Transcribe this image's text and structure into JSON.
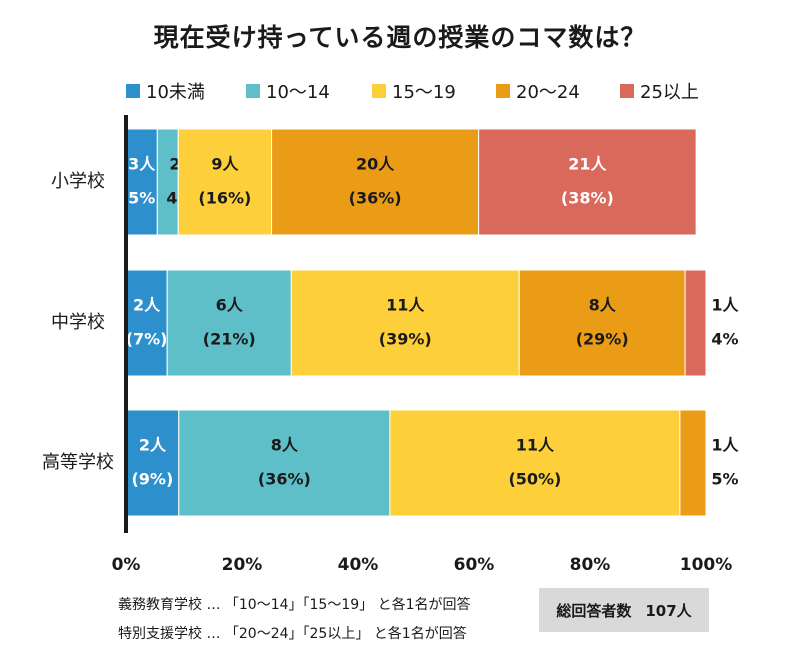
{
  "chart_data": {
    "type": "bar",
    "orientation": "horizontal",
    "stacked": true,
    "title": "現在受け持っている週の授業のコマ数は？",
    "categories": [
      "小学校",
      "中学校",
      "高等学校"
    ],
    "series": [
      {
        "name": "10未満",
        "color": "#2e8fcd",
        "values_pct": [
          5.4,
          7.1,
          9.1
        ],
        "labels_count": [
          "3人",
          "2人",
          "2人"
        ],
        "labels_pct": [
          "5%",
          "(7%)",
          "(9%)"
        ]
      },
      {
        "name": "10〜14",
        "color": "#5ebfc9",
        "values_pct": [
          3.6,
          21.4,
          36.4
        ],
        "labels_count": [
          "2",
          "6人",
          "8人"
        ],
        "labels_pct": [
          "4%",
          "(21%)",
          "(36%)"
        ]
      },
      {
        "name": "15〜19",
        "color": "#fdd03b",
        "values_pct": [
          16.1,
          39.3,
          50.0
        ],
        "labels_count": [
          "9人",
          "11人",
          "11人"
        ],
        "labels_pct": [
          "(16%)",
          "(39%)",
          "(50%)"
        ]
      },
      {
        "name": "20〜24",
        "color": "#eb9c17",
        "values_pct": [
          35.7,
          28.6,
          4.5
        ],
        "labels_count": [
          "20人",
          "8人",
          "1人"
        ],
        "labels_pct": [
          "(36%)",
          "(29%)",
          "5%"
        ]
      },
      {
        "name": "25以上",
        "color": "#d9695a",
        "values_pct": [
          37.5,
          3.6,
          0
        ],
        "labels_count": [
          "21人",
          "1人",
          ""
        ],
        "labels_pct": [
          "(38%)",
          "4%",
          ""
        ]
      }
    ],
    "xlim": [
      0,
      100
    ],
    "xticks": [
      "0%",
      "20%",
      "40%",
      "60%",
      "80%",
      "100%"
    ],
    "xlabel": "",
    "ylabel": ""
  },
  "notes": [
    "義務教育学校 … 「10〜14」「15〜19」 と各1名が回答",
    "特別支援学校 … 「20〜24」「25以上」 と各1名が回答"
  ],
  "total": {
    "label": "総回答者数",
    "value": "107人"
  }
}
